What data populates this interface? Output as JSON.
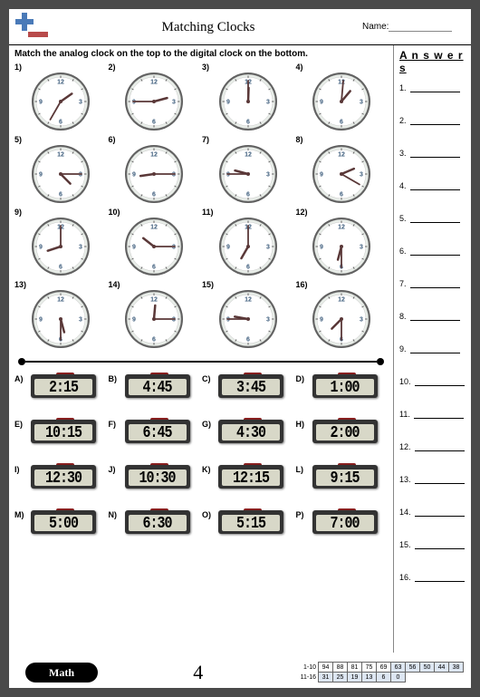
{
  "header": {
    "title": "Matching Clocks",
    "name_label": "Name:"
  },
  "instruction": "Match the analog clock on the top to the digital clock on the bottom.",
  "answers_title": "A n s w e r s",
  "answer_count": 16,
  "page_number": "4",
  "math_label": "Math",
  "clocks": [
    {
      "n": "1)",
      "hour": 55,
      "minute": 210
    },
    {
      "n": "2)",
      "hour": 75,
      "minute": 270
    },
    {
      "n": "3)",
      "hour": 2,
      "minute": 0
    },
    {
      "n": "4)",
      "hour": 40,
      "minute": 5
    },
    {
      "n": "5)",
      "hour": 135,
      "minute": 90
    },
    {
      "n": "6)",
      "hour": 262,
      "minute": 90
    },
    {
      "n": "7)",
      "hour": 285,
      "minute": 270
    },
    {
      "n": "8)",
      "hour": 67,
      "minute": 120
    },
    {
      "n": "9)",
      "hour": 252,
      "minute": 0
    },
    {
      "n": "10)",
      "hour": 308,
      "minute": 90
    },
    {
      "n": "11)",
      "hour": 210,
      "minute": 0
    },
    {
      "n": "12)",
      "hour": 195,
      "minute": 180
    },
    {
      "n": "13)",
      "hour": 165,
      "minute": 180
    },
    {
      "n": "14)",
      "hour": 5,
      "minute": 90
    },
    {
      "n": "15)",
      "hour": 280,
      "minute": 270
    },
    {
      "n": "16)",
      "hour": 225,
      "minute": 180
    }
  ],
  "digitals": [
    {
      "n": "A)",
      "t": "2:15"
    },
    {
      "n": "B)",
      "t": "4:45"
    },
    {
      "n": "C)",
      "t": "3:45"
    },
    {
      "n": "D)",
      "t": "1:00"
    },
    {
      "n": "E)",
      "t": "10:15"
    },
    {
      "n": "F)",
      "t": "6:45"
    },
    {
      "n": "G)",
      "t": "4:30"
    },
    {
      "n": "H)",
      "t": "2:00"
    },
    {
      "n": "I)",
      "t": "12:30"
    },
    {
      "n": "J)",
      "t": "10:30"
    },
    {
      "n": "K)",
      "t": "12:15"
    },
    {
      "n": "L)",
      "t": "9:15"
    },
    {
      "n": "M)",
      "t": "5:00"
    },
    {
      "n": "N)",
      "t": "6:30"
    },
    {
      "n": "O)",
      "t": "5:15"
    },
    {
      "n": "P)",
      "t": "7:00"
    }
  ],
  "scores": {
    "row1_label": "1-10",
    "row2_label": "11-16",
    "row1": [
      "94",
      "88",
      "81",
      "75",
      "69",
      "63",
      "56",
      "50",
      "44",
      "38"
    ],
    "row2": [
      "31",
      "25",
      "19",
      "13",
      "6",
      "0"
    ],
    "blue_from_index": 5
  },
  "colors": {
    "clock_face": "#e8ede8",
    "clock_rim": "#606060",
    "clock_inner": "#ffffff",
    "hand": "#5a3838",
    "numeral": "#3a5a7a"
  }
}
